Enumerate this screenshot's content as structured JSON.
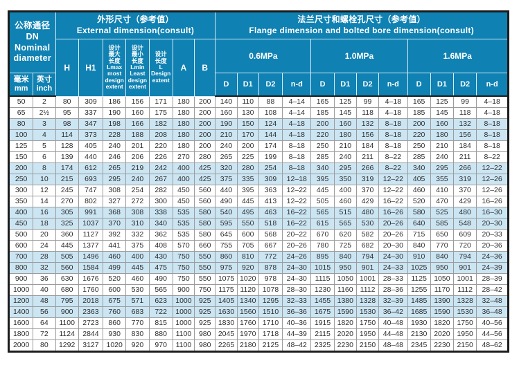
{
  "colors": {
    "header_bg": "#0f81b2",
    "row_highlight": "#cbe5f3",
    "grid": "#9b9b9b",
    "frame": "#1c1c1c",
    "header_text": "#ffffff",
    "body_text": "#2e2e2e"
  },
  "header": {
    "dn_title": "公称通径\nDN\nNominal\ndiameter",
    "mm_label": "毫米\nmm",
    "inch_label": "英寸\ninch",
    "external_title": "外形尺寸（参考值）\nExternal dimension(consult)",
    "flange_title": "法兰尺寸和螺栓孔尺寸（参考值）\nFlange dimension and bolted bore dimension(consult)",
    "ext_cols": {
      "h": "H",
      "h1": "H1",
      "lmax": "设计\n最大\n长度\nLmax\nmost\ndesign\nextent",
      "lmin": "设计\n最小\n长度\nLmin\nLeast\ndesign\nextent",
      "l": "设计\n长度\nL\nDesign\nextent",
      "a": "A",
      "b": "B"
    },
    "pressure_groups": [
      "0.6MPa",
      "1.0MPa",
      "1.6MPa"
    ],
    "flange_cols": [
      "D",
      "D1",
      "D2",
      "n-d"
    ]
  },
  "rows": [
    {
      "h": false,
      "c": [
        "50",
        "2",
        "80",
        "309",
        "186",
        "156",
        "171",
        "180",
        "200",
        "140",
        "110",
        "88",
        "4–14",
        "165",
        "125",
        "99",
        "4–18",
        "165",
        "125",
        "99",
        "4–18"
      ]
    },
    {
      "h": false,
      "c": [
        "65",
        "2½",
        "95",
        "337",
        "190",
        "160",
        "175",
        "180",
        "200",
        "160",
        "130",
        "108",
        "4–14",
        "185",
        "145",
        "118",
        "4–18",
        "185",
        "145",
        "118",
        "4–18"
      ]
    },
    {
      "h": true,
      "c": [
        "80",
        "3",
        "98",
        "347",
        "198",
        "166",
        "182",
        "180",
        "200",
        "190",
        "150",
        "124",
        "4–18",
        "200",
        "160",
        "132",
        "8–18",
        "200",
        "160",
        "132",
        "8–18"
      ]
    },
    {
      "h": true,
      "c": [
        "100",
        "4",
        "114",
        "373",
        "228",
        "188",
        "208",
        "180",
        "200",
        "210",
        "170",
        "144",
        "4–18",
        "220",
        "180",
        "156",
        "8–18",
        "220",
        "180",
        "156",
        "8–18"
      ]
    },
    {
      "h": false,
      "c": [
        "125",
        "5",
        "128",
        "405",
        "240",
        "201",
        "220",
        "180",
        "200",
        "240",
        "200",
        "174",
        "8–18",
        "250",
        "210",
        "184",
        "8–18",
        "250",
        "210",
        "184",
        "8–18"
      ]
    },
    {
      "h": false,
      "c": [
        "150",
        "6",
        "139",
        "440",
        "246",
        "206",
        "226",
        "270",
        "280",
        "265",
        "225",
        "199",
        "8–18",
        "285",
        "240",
        "211",
        "8–22",
        "285",
        "240",
        "211",
        "8–22"
      ]
    },
    {
      "h": true,
      "c": [
        "200",
        "8",
        "174",
        "612",
        "265",
        "219",
        "242",
        "400",
        "425",
        "320",
        "280",
        "254",
        "8–18",
        "340",
        "295",
        "266",
        "8–22",
        "340",
        "295",
        "266",
        "12–22"
      ]
    },
    {
      "h": true,
      "c": [
        "250",
        "10",
        "215",
        "693",
        "295",
        "240",
        "267",
        "400",
        "425",
        "375",
        "335",
        "309",
        "12–18",
        "395",
        "350",
        "319",
        "12–22",
        "405",
        "355",
        "319",
        "12–26"
      ]
    },
    {
      "h": false,
      "c": [
        "300",
        "12",
        "245",
        "747",
        "308",
        "254",
        "282",
        "450",
        "560",
        "440",
        "395",
        "363",
        "12–22",
        "445",
        "400",
        "370",
        "12–22",
        "460",
        "410",
        "370",
        "12–26"
      ]
    },
    {
      "h": false,
      "c": [
        "350",
        "14",
        "270",
        "802",
        "327",
        "272",
        "300",
        "450",
        "560",
        "490",
        "445",
        "413",
        "12–22",
        "505",
        "460",
        "429",
        "16–22",
        "520",
        "470",
        "429",
        "16–26"
      ]
    },
    {
      "h": true,
      "c": [
        "400",
        "16",
        "305",
        "991",
        "368",
        "308",
        "338",
        "535",
        "580",
        "540",
        "495",
        "463",
        "16–22",
        "565",
        "515",
        "480",
        "16–26",
        "580",
        "525",
        "480",
        "16–30"
      ]
    },
    {
      "h": true,
      "c": [
        "450",
        "18",
        "325",
        "1037",
        "370",
        "310",
        "340",
        "535",
        "580",
        "595",
        "550",
        "518",
        "16–22",
        "615",
        "565",
        "530",
        "20–26",
        "640",
        "585",
        "548",
        "20–30"
      ]
    },
    {
      "h": false,
      "c": [
        "500",
        "20",
        "360",
        "1127",
        "392",
        "332",
        "362",
        "535",
        "580",
        "645",
        "600",
        "568",
        "20–22",
        "670",
        "620",
        "582",
        "20–26",
        "715",
        "650",
        "609",
        "20–33"
      ]
    },
    {
      "h": false,
      "c": [
        "600",
        "24",
        "445",
        "1377",
        "441",
        "375",
        "408",
        "570",
        "660",
        "755",
        "705",
        "667",
        "20–26",
        "780",
        "725",
        "682",
        "20–30",
        "840",
        "770",
        "720",
        "20–36"
      ]
    },
    {
      "h": true,
      "c": [
        "700",
        "28",
        "505",
        "1496",
        "460",
        "400",
        "430",
        "750",
        "550",
        "860",
        "810",
        "772",
        "24–26",
        "895",
        "840",
        "794",
        "24–30",
        "910",
        "840",
        "794",
        "24–36"
      ]
    },
    {
      "h": true,
      "c": [
        "800",
        "32",
        "560",
        "1584",
        "499",
        "445",
        "475",
        "750",
        "550",
        "975",
        "920",
        "878",
        "24–30",
        "1015",
        "950",
        "901",
        "24–33",
        "1025",
        "950",
        "901",
        "24–39"
      ]
    },
    {
      "h": false,
      "c": [
        "900",
        "36",
        "630",
        "1676",
        "520",
        "460",
        "490",
        "750",
        "550",
        "1075",
        "1020",
        "978",
        "24–30",
        "1115",
        "1050",
        "1001",
        "28–33",
        "1125",
        "1050",
        "1001",
        "28–39"
      ]
    },
    {
      "h": false,
      "c": [
        "1000",
        "40",
        "680",
        "1760",
        "600",
        "530",
        "565",
        "900",
        "750",
        "1175",
        "1120",
        "1078",
        "28–30",
        "1230",
        "1160",
        "1112",
        "28–36",
        "1255",
        "1170",
        "1112",
        "28–42"
      ]
    },
    {
      "h": true,
      "c": [
        "1200",
        "48",
        "795",
        "2018",
        "675",
        "571",
        "623",
        "1000",
        "925",
        "1405",
        "1340",
        "1295",
        "32–33",
        "1455",
        "1380",
        "1328",
        "32–39",
        "1485",
        "1390",
        "1328",
        "32–48"
      ]
    },
    {
      "h": true,
      "c": [
        "1400",
        "56",
        "900",
        "2363",
        "760",
        "683",
        "722",
        "1000",
        "925",
        "1630",
        "1560",
        "1510",
        "36–36",
        "1675",
        "1590",
        "1530",
        "36–42",
        "1685",
        "1590",
        "1530",
        "36–48"
      ]
    },
    {
      "h": false,
      "c": [
        "1600",
        "64",
        "1100",
        "2723",
        "860",
        "770",
        "815",
        "1000",
        "925",
        "1830",
        "1760",
        "1710",
        "40–36",
        "1915",
        "1820",
        "1750",
        "40–48",
        "1930",
        "1820",
        "1750",
        "40–56"
      ]
    },
    {
      "h": false,
      "c": [
        "1800",
        "72",
        "1124",
        "2844",
        "930",
        "830",
        "880",
        "1100",
        "980",
        "2045",
        "1970",
        "1718",
        "44–39",
        "2115",
        "2020",
        "1950",
        "44–48",
        "2130",
        "2020",
        "1950",
        "44–56"
      ]
    },
    {
      "h": false,
      "c": [
        "2000",
        "80",
        "1292",
        "3127",
        "1020",
        "920",
        "970",
        "1100",
        "980",
        "2265",
        "2180",
        "2125",
        "48–42",
        "2325",
        "2230",
        "2150",
        "48–48",
        "2345",
        "2230",
        "2150",
        "48–62"
      ]
    }
  ]
}
